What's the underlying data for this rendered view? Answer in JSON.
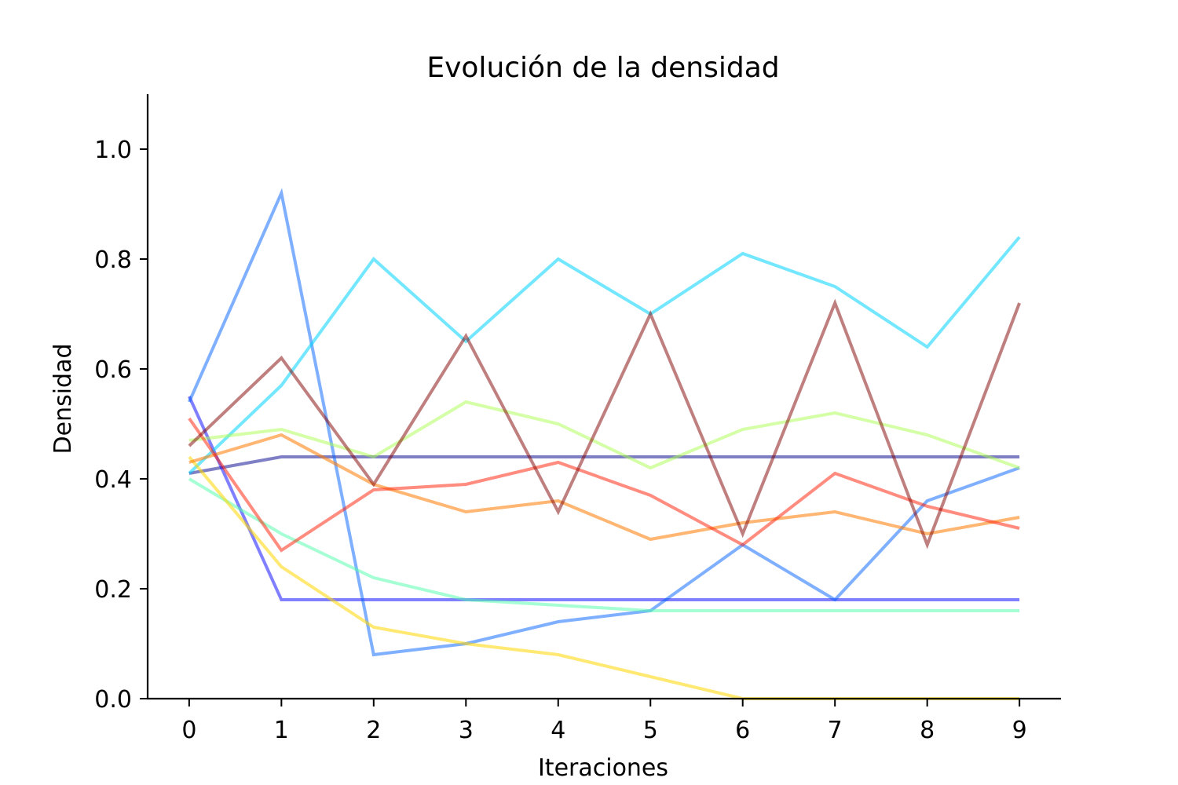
{
  "chart_data": {
    "type": "line",
    "title": "Evolución de la densidad",
    "xlabel": "Iteraciones",
    "ylabel": "Densidad",
    "x": [
      0,
      1,
      2,
      3,
      4,
      5,
      6,
      7,
      8,
      9
    ],
    "xticks": [
      "0",
      "1",
      "2",
      "3",
      "4",
      "5",
      "6",
      "7",
      "8",
      "9"
    ],
    "yticks": [
      "0.0",
      "0.2",
      "0.4",
      "0.6",
      "0.8",
      "1.0"
    ],
    "xlim": [
      -0.45,
      9.45
    ],
    "ylim": [
      0.0,
      1.1
    ],
    "grid": false,
    "legend": "none",
    "series": [
      {
        "color": "#00008b",
        "opacity": 0.5,
        "values": [
          0.41,
          0.44,
          0.44,
          0.44,
          0.44,
          0.44,
          0.44,
          0.44,
          0.44,
          0.44
        ]
      },
      {
        "color": "#0000ff",
        "opacity": 0.5,
        "values": [
          0.55,
          0.18,
          0.18,
          0.18,
          0.18,
          0.18,
          0.18,
          0.18,
          0.18,
          0.18
        ]
      },
      {
        "color": "#0060ff",
        "opacity": 0.5,
        "values": [
          0.54,
          0.92,
          0.08,
          0.1,
          0.14,
          0.16,
          0.28,
          0.18,
          0.36,
          0.42
        ]
      },
      {
        "color": "#00d4ff",
        "opacity": 0.55,
        "values": [
          0.41,
          0.57,
          0.8,
          0.65,
          0.8,
          0.7,
          0.81,
          0.75,
          0.64,
          0.84
        ]
      },
      {
        "color": "#4dffaa",
        "opacity": 0.5,
        "values": [
          0.4,
          0.3,
          0.22,
          0.18,
          0.17,
          0.16,
          0.16,
          0.16,
          0.16,
          0.16
        ]
      },
      {
        "color": "#aaff4d",
        "opacity": 0.5,
        "values": [
          0.47,
          0.49,
          0.44,
          0.54,
          0.5,
          0.42,
          0.49,
          0.52,
          0.48,
          0.42
        ]
      },
      {
        "color": "#ffd700",
        "opacity": 0.55,
        "values": [
          0.44,
          0.24,
          0.13,
          0.1,
          0.08,
          0.04,
          0.0,
          0.0,
          0.0,
          0.0
        ]
      },
      {
        "color": "#ff7a00",
        "opacity": 0.55,
        "values": [
          0.43,
          0.48,
          0.39,
          0.34,
          0.36,
          0.29,
          0.32,
          0.34,
          0.3,
          0.33
        ]
      },
      {
        "color": "#ff1a00",
        "opacity": 0.5,
        "values": [
          0.51,
          0.27,
          0.38,
          0.39,
          0.43,
          0.37,
          0.28,
          0.41,
          0.35,
          0.31
        ]
      },
      {
        "color": "#800000",
        "opacity": 0.5,
        "values": [
          0.46,
          0.62,
          0.39,
          0.66,
          0.34,
          0.7,
          0.3,
          0.72,
          0.28,
          0.72
        ]
      }
    ]
  }
}
